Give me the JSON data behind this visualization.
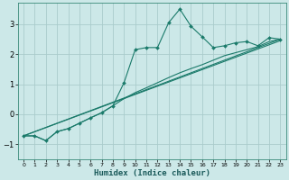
{
  "title": "",
  "xlabel": "Humidex (Indice chaleur)",
  "ylabel": "",
  "bg_color": "#cce8e8",
  "grid_color": "#aacccc",
  "line_color": "#1a7a6a",
  "xlim": [
    -0.5,
    23.5
  ],
  "ylim": [
    -1.5,
    3.7
  ],
  "x_ticks": [
    0,
    1,
    2,
    3,
    4,
    5,
    6,
    7,
    8,
    9,
    10,
    11,
    12,
    13,
    14,
    15,
    16,
    17,
    18,
    19,
    20,
    21,
    22,
    23
  ],
  "y_ticks": [
    -1,
    0,
    1,
    2,
    3
  ],
  "series1_x": [
    0,
    1,
    2,
    3,
    4,
    5,
    6,
    7,
    8,
    9,
    10,
    11,
    12,
    13,
    14,
    15,
    16,
    17,
    18,
    19,
    20,
    21,
    22,
    23
  ],
  "series1_y": [
    -0.72,
    -0.72,
    -0.88,
    -0.58,
    -0.48,
    -0.3,
    -0.12,
    0.05,
    0.28,
    1.05,
    2.15,
    2.22,
    2.22,
    3.05,
    3.5,
    2.93,
    2.58,
    2.22,
    2.28,
    2.38,
    2.42,
    2.28,
    2.55,
    2.5
  ],
  "series2_x": [
    0,
    1,
    2,
    3,
    4,
    5,
    6,
    7,
    8,
    9,
    10,
    11,
    12,
    13,
    14,
    15,
    16,
    17,
    18,
    19,
    20,
    21,
    22,
    23
  ],
  "series2_y": [
    -0.72,
    -0.72,
    -0.88,
    -0.58,
    -0.48,
    -0.3,
    -0.12,
    0.05,
    0.28,
    0.52,
    0.72,
    0.88,
    1.05,
    1.22,
    1.38,
    1.52,
    1.65,
    1.8,
    1.95,
    2.05,
    2.15,
    2.25,
    2.42,
    2.5
  ],
  "line1_x": [
    0,
    23
  ],
  "line1_y": [
    -0.72,
    2.5
  ],
  "line2_x": [
    0,
    23
  ],
  "line2_y": [
    -0.72,
    2.45
  ]
}
